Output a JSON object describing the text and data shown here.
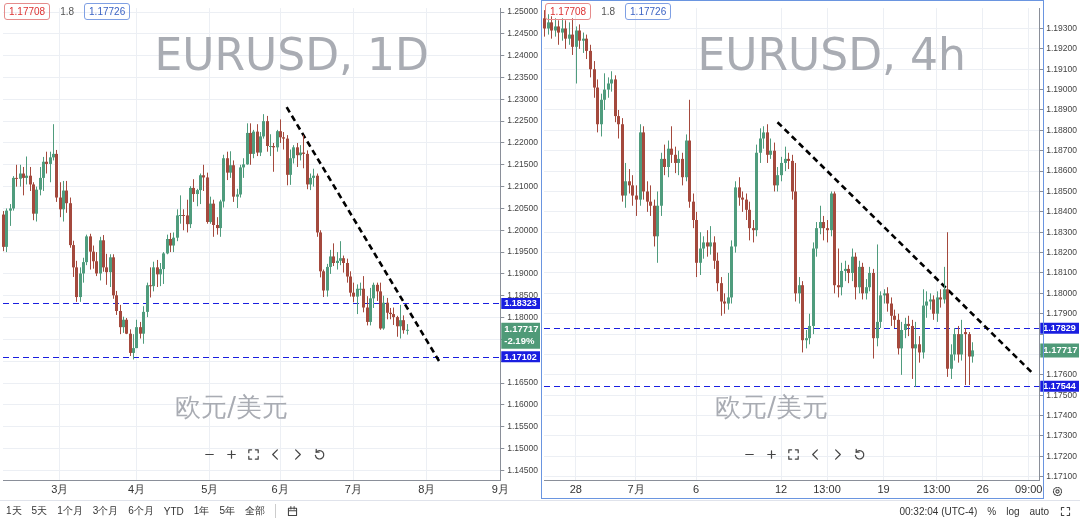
{
  "chart_data": [
    {
      "type": "candlestick",
      "title": "EURUSD, 1D",
      "subtitle": "欧元/美元",
      "categories": [
        null,
        null,
        null,
        null,
        null,
        null,
        null,
        null,
        null,
        null,
        null,
        null,
        null,
        null,
        null,
        null,
        null,
        "3月",
        null,
        null,
        null,
        null,
        null,
        null,
        null,
        null,
        null,
        null,
        null,
        null,
        null,
        null,
        null,
        null,
        null,
        null,
        null,
        null,
        null,
        null,
        "4月",
        null,
        null,
        null,
        null,
        null,
        null,
        null,
        null,
        null,
        null,
        null,
        null,
        null,
        null,
        null,
        null,
        null,
        null,
        null,
        null,
        null,
        "5月",
        null,
        null,
        null,
        null,
        null,
        null,
        null,
        null,
        null,
        null,
        null,
        null,
        null,
        null,
        null,
        null,
        null,
        null,
        null,
        null,
        "6月",
        null,
        null,
        null,
        null,
        null,
        null,
        null,
        null,
        null,
        null,
        null,
        null,
        null,
        null,
        null,
        null,
        null,
        null,
        null,
        null,
        null,
        "7月",
        null,
        null,
        null,
        null,
        null,
        null,
        null,
        null,
        null,
        null,
        null,
        null,
        null,
        null,
        null,
        null,
        null,
        null,
        null,
        null,
        null,
        "8月",
        null,
        null,
        null,
        null,
        null,
        null,
        null,
        null,
        null,
        null,
        null,
        null,
        null,
        null,
        null,
        null,
        null,
        null,
        null,
        null,
        null,
        "9月"
      ],
      "ohlc": [
        [
          1.2036,
          1.2044,
          1.1952,
          1.1962
        ],
        [
          1.1962,
          1.205,
          1.195,
          1.2045
        ],
        [
          1.2045,
          1.206,
          1.201,
          1.205
        ],
        [
          1.205,
          1.2124,
          1.2045,
          1.212
        ],
        [
          1.212,
          1.215,
          1.21,
          1.2118
        ],
        [
          1.2118,
          1.215,
          1.21,
          1.213
        ],
        [
          1.213,
          1.2145,
          1.208,
          1.212
        ],
        [
          1.212,
          1.2169,
          1.2105,
          1.2125
        ],
        [
          1.2125,
          1.2145,
          1.209,
          1.2105
        ],
        [
          1.2105,
          1.211,
          1.2023,
          1.2038
        ],
        [
          1.2038,
          1.21,
          1.202,
          1.2093
        ],
        [
          1.2093,
          1.2145,
          1.208,
          1.212
        ],
        [
          1.212,
          1.2168,
          1.209,
          1.2157
        ],
        [
          1.2157,
          1.218,
          1.213,
          1.2152
        ],
        [
          1.2152,
          1.218,
          1.211,
          1.2167
        ],
        [
          1.2167,
          1.2243,
          1.216,
          1.2175
        ],
        [
          1.2175,
          1.2184,
          1.2065,
          1.2075
        ],
        [
          1.2075,
          1.211,
          1.203,
          1.2048
        ],
        [
          1.2048,
          1.2113,
          1.202,
          1.2091
        ],
        [
          1.2091,
          1.2113,
          1.204,
          1.2062
        ],
        [
          1.2062,
          1.2075,
          1.196,
          1.1966
        ],
        [
          1.1966,
          1.1976,
          1.1893,
          1.1915
        ],
        [
          1.1915,
          1.193,
          1.1836,
          1.1847
        ],
        [
          1.1847,
          1.1915,
          1.1836,
          1.1901
        ],
        [
          1.1901,
          1.1937,
          1.188,
          1.1927
        ],
        [
          1.1927,
          1.199,
          1.192,
          1.1986
        ],
        [
          1.1986,
          1.1992,
          1.191,
          1.1951
        ],
        [
          1.1951,
          1.1965,
          1.1912,
          1.1929
        ],
        [
          1.1929,
          1.195,
          1.1895,
          1.1901
        ],
        [
          1.1901,
          1.1985,
          1.1885,
          1.1977
        ],
        [
          1.1977,
          1.1989,
          1.1905,
          1.1915
        ],
        [
          1.1915,
          1.1946,
          1.1875,
          1.1904
        ],
        [
          1.1904,
          1.1945,
          1.187,
          1.1938
        ],
        [
          1.1938,
          1.1945,
          1.1843,
          1.1851
        ],
        [
          1.1851,
          1.1861,
          1.1806,
          1.1815
        ],
        [
          1.1815,
          1.1829,
          1.1762,
          1.1778
        ],
        [
          1.1778,
          1.1802,
          1.1765,
          1.1795
        ],
        [
          1.1795,
          1.1799,
          1.1762,
          1.1763
        ],
        [
          1.1763,
          1.1773,
          1.1712,
          1.1719
        ],
        [
          1.1719,
          1.1762,
          1.1704,
          1.173
        ],
        [
          1.173,
          1.1795,
          1.173,
          1.1778
        ],
        [
          1.1778,
          1.179,
          1.1752,
          1.1763
        ],
        [
          1.1763,
          1.1826,
          1.174,
          1.1813
        ],
        [
          1.1813,
          1.188,
          1.1801,
          1.1874
        ],
        [
          1.1874,
          1.1915,
          1.1846,
          1.1872
        ],
        [
          1.1872,
          1.1928,
          1.186,
          1.1915
        ],
        [
          1.1915,
          1.1932,
          1.187,
          1.1899
        ],
        [
          1.1899,
          1.1925,
          1.1872,
          1.1911
        ],
        [
          1.1911,
          1.195,
          1.1877,
          1.1947
        ],
        [
          1.1947,
          1.199,
          1.1945,
          1.198
        ],
        [
          1.198,
          1.1994,
          1.195,
          1.1965
        ],
        [
          1.1965,
          1.1995,
          1.195,
          1.1983
        ],
        [
          1.1983,
          1.2048,
          1.1975,
          1.2034
        ],
        [
          1.2034,
          1.208,
          1.2015,
          1.2035
        ],
        [
          1.2035,
          1.2048,
          1.2,
          1.2034
        ],
        [
          1.2034,
          1.207,
          1.1995,
          1.2014
        ],
        [
          1.2014,
          1.2101,
          1.2005,
          1.2097
        ],
        [
          1.2097,
          1.2117,
          1.2065,
          1.2083
        ],
        [
          1.2083,
          1.2095,
          1.2055,
          1.2092
        ],
        [
          1.2092,
          1.213,
          1.206,
          1.2126
        ],
        [
          1.2126,
          1.215,
          1.209,
          1.2121
        ],
        [
          1.2121,
          1.2132,
          1.2015,
          1.2019
        ],
        [
          1.2019,
          1.2077,
          1.2015,
          1.2061
        ],
        [
          1.2061,
          1.207,
          1.1985,
          1.2012
        ],
        [
          1.2012,
          1.203,
          1.199,
          1.2005
        ],
        [
          1.2005,
          1.207,
          1.1985,
          1.2066
        ],
        [
          1.2066,
          1.2173,
          1.2052,
          1.2165
        ],
        [
          1.2165,
          1.218,
          1.2115,
          1.2132
        ],
        [
          1.2132,
          1.2181,
          1.212,
          1.2149
        ],
        [
          1.2149,
          1.216,
          1.2065,
          1.2077
        ],
        [
          1.2077,
          1.2095,
          1.2051,
          1.2082
        ],
        [
          1.2082,
          1.215,
          1.2075,
          1.2144
        ],
        [
          1.2144,
          1.2165,
          1.212,
          1.2151
        ],
        [
          1.2151,
          1.2245,
          1.215,
          1.2223
        ],
        [
          1.2223,
          1.2245,
          1.215,
          1.2175
        ],
        [
          1.2175,
          1.223,
          1.2165,
          1.2226
        ],
        [
          1.2226,
          1.2243,
          1.217,
          1.2178
        ],
        [
          1.2178,
          1.2225,
          1.217,
          1.2215
        ],
        [
          1.2215,
          1.2266,
          1.221,
          1.225
        ],
        [
          1.225,
          1.2262,
          1.218,
          1.2193
        ],
        [
          1.2193,
          1.222,
          1.217,
          1.2193
        ],
        [
          1.2193,
          1.22,
          1.2134,
          1.219
        ],
        [
          1.219,
          1.223,
          1.218,
          1.2227
        ],
        [
          1.2227,
          1.2254,
          1.22,
          1.2213
        ],
        [
          1.2213,
          1.2225,
          1.2185,
          1.221
        ],
        [
          1.221,
          1.2218,
          1.2103,
          1.2127
        ],
        [
          1.2127,
          1.2185,
          1.2104,
          1.2165
        ],
        [
          1.2165,
          1.2195,
          1.2153,
          1.219
        ],
        [
          1.219,
          1.22,
          1.2145,
          1.2172
        ],
        [
          1.2172,
          1.2195,
          1.216,
          1.2178
        ],
        [
          1.2178,
          1.2218,
          1.2142,
          1.2175
        ],
        [
          1.2175,
          1.2183,
          1.2094,
          1.2105
        ],
        [
          1.2105,
          1.213,
          1.2092,
          1.212
        ],
        [
          1.212,
          1.2141,
          1.21,
          1.2125
        ],
        [
          1.2125,
          1.213,
          1.1985,
          1.1995
        ],
        [
          1.1995,
          1.2,
          1.1892,
          1.1906
        ],
        [
          1.1906,
          1.191,
          1.1847,
          1.1862
        ],
        [
          1.1862,
          1.1923,
          1.1848,
          1.1916
        ],
        [
          1.1916,
          1.1955,
          1.19,
          1.194
        ],
        [
          1.194,
          1.197,
          1.1918,
          1.1925
        ],
        [
          1.1925,
          1.195,
          1.191,
          1.193
        ],
        [
          1.193,
          1.1975,
          1.192,
          1.1936
        ],
        [
          1.1936,
          1.1942,
          1.1903,
          1.1925
        ],
        [
          1.1925,
          1.1935,
          1.188,
          1.1894
        ],
        [
          1.1894,
          1.1906,
          1.1848,
          1.1857
        ],
        [
          1.1857,
          1.188,
          1.1835,
          1.1848
        ],
        [
          1.1848,
          1.1876,
          1.1808,
          1.1866
        ],
        [
          1.1866,
          1.188,
          1.185,
          1.1866
        ],
        [
          1.1866,
          1.1895,
          1.1812,
          1.1823
        ],
        [
          1.1823,
          1.1849,
          1.1782,
          1.179
        ],
        [
          1.179,
          1.1868,
          1.1782,
          1.1844
        ],
        [
          1.1844,
          1.188,
          1.1822,
          1.1875
        ],
        [
          1.1875,
          1.188,
          1.1838,
          1.186
        ],
        [
          1.186,
          1.188,
          1.1772,
          1.1775
        ],
        [
          1.1775,
          1.185,
          1.1772,
          1.1834
        ],
        [
          1.1834,
          1.1845,
          1.1796,
          1.1811
        ],
        [
          1.1811,
          1.1822,
          1.1796,
          1.1808
        ],
        [
          1.1808,
          1.1823,
          1.1783,
          1.1801
        ],
        [
          1.1801,
          1.1804,
          1.1756,
          1.178
        ],
        [
          1.178,
          1.1829,
          1.1752,
          1.1794
        ],
        [
          1.1794,
          1.1805,
          1.1763,
          1.1771
        ],
        [
          1.1771,
          1.1785,
          1.1761,
          1.1772
        ],
        null,
        null,
        null,
        null,
        null,
        null,
        null,
        null,
        null,
        null,
        null,
        null,
        null,
        null,
        null,
        null,
        null,
        null,
        null,
        null,
        null,
        null,
        null,
        null,
        null,
        null,
        null,
        null
      ],
      "series": [
        {
          "type": "line",
          "color": "#000000",
          "line_style": "dashed",
          "values": [
            null,
            null,
            null,
            null,
            null,
            null,
            null,
            null,
            null,
            null,
            null,
            null,
            null,
            null,
            null,
            null,
            null,
            null,
            null,
            null,
            null,
            null,
            null,
            null,
            null,
            null,
            null,
            null,
            null,
            null,
            null,
            null,
            null,
            null,
            null,
            null,
            null,
            null,
            null,
            null,
            null,
            null,
            null,
            null,
            null,
            null,
            null,
            null,
            null,
            null,
            null,
            null,
            null,
            null,
            null,
            null,
            null,
            null,
            null,
            null,
            null,
            null,
            null,
            null,
            null,
            null,
            null,
            null,
            null,
            null,
            null,
            null,
            null,
            null,
            null,
            null,
            null,
            null,
            null,
            null,
            null,
            null,
            null,
            null,
            null,
            1.2282,
            null,
            null,
            null,
            null,
            null,
            null,
            null,
            null,
            null,
            null,
            null,
            null,
            null,
            null,
            null,
            null,
            null,
            null,
            null,
            null,
            null,
            null,
            null,
            null,
            null,
            null,
            null,
            null,
            null,
            null,
            null,
            null,
            null,
            null,
            null,
            null,
            null,
            null,
            null,
            null,
            null,
            null,
            null,
            null,
            null,
            1.1696,
            null,
            null,
            null,
            null,
            null,
            null,
            null,
            null,
            null,
            null,
            null,
            null,
            null,
            null,
            null,
            null,
            null,
            null
          ]
        }
      ],
      "ylim": [
        1.1426,
        1.2509
      ],
      "yticks": [
        {
          "value": 1.145,
          "label": "1.14500"
        },
        {
          "value": 1.15,
          "label": "1.15000"
        },
        {
          "value": 1.155,
          "label": "1.15500"
        },
        {
          "value": 1.16,
          "label": "1.16000"
        },
        {
          "value": 1.165,
          "label": "1.16500"
        },
        {
          "value": 1.17,
          "label": null
        },
        {
          "value": 1.175,
          "label": null
        },
        {
          "value": 1.18,
          "label": "1.18000"
        },
        {
          "value": 1.185,
          "label": "1.18500"
        },
        {
          "value": 1.19,
          "label": "1.19000"
        },
        {
          "value": 1.195,
          "label": "1.19500"
        },
        {
          "value": 1.2,
          "label": "1.20000"
        },
        {
          "value": 1.205,
          "label": "1.20500"
        },
        {
          "value": 1.21,
          "label": "1.21000"
        },
        {
          "value": 1.215,
          "label": "1.21500"
        },
        {
          "value": 1.22,
          "label": "1.22000"
        },
        {
          "value": 1.225,
          "label": "1.22500"
        },
        {
          "value": 1.23,
          "label": "1.23000"
        },
        {
          "value": 1.235,
          "label": "1.23500"
        },
        {
          "value": 1.24,
          "label": "1.24000"
        },
        {
          "value": 1.245,
          "label": "1.24500"
        },
        {
          "value": 1.25,
          "label": "1.25000"
        }
      ],
      "grid": true,
      "ref_lines": [
        {
          "axis": "y",
          "value": 1.18323,
          "label": "1.18323",
          "color": "#1a1ee0",
          "line_style": "dashed"
        },
        {
          "axis": "y",
          "value": 1.17102,
          "label": "1.17102",
          "color": "#1a1ee0",
          "line_style": "dashed"
        }
      ],
      "annotations": [
        "1.17717\n-2.19%",
        "1.17708",
        "1.8",
        "1.17726",
        "1天",
        "5天",
        "1个月",
        "3个月",
        "6个月",
        "YTD",
        "1年",
        "5年",
        "全部"
      ]
    },
    {
      "type": "candlestick",
      "title": "EURUSD, 4h",
      "subtitle": "欧元/美元",
      "categories": [
        null,
        null,
        null,
        null,
        null,
        null,
        null,
        null,
        null,
        "28",
        null,
        null,
        null,
        null,
        null,
        null,
        null,
        null,
        null,
        null,
        null,
        null,
        null,
        null,
        null,
        null,
        "7月",
        null,
        null,
        null,
        null,
        null,
        null,
        null,
        null,
        null,
        null,
        null,
        null,
        null,
        null,
        null,
        null,
        "6",
        null,
        null,
        null,
        null,
        null,
        null,
        null,
        null,
        null,
        null,
        null,
        null,
        null,
        null,
        null,
        null,
        null,
        null,
        null,
        null,
        null,
        null,
        null,
        "12",
        null,
        null,
        null,
        null,
        null,
        null,
        null,
        null,
        null,
        null,
        null,
        null,
        "13:00",
        null,
        null,
        null,
        null,
        null,
        null,
        null,
        null,
        null,
        null,
        null,
        null,
        null,
        null,
        null,
        "19",
        null,
        null,
        null,
        null,
        null,
        null,
        null,
        null,
        null,
        null,
        null,
        null,
        null,
        null,
        "13:00",
        null,
        null,
        null,
        null,
        null,
        null,
        null,
        null,
        null,
        null,
        null,
        null,
        "26",
        null,
        null,
        null,
        null,
        null,
        null,
        null,
        null,
        null,
        null,
        null,
        null,
        "09:00",
        null,
        null,
        null
      ],
      "ohlc": [
        [
          1.1935,
          1.1939,
          1.1926,
          1.193
        ],
        [
          1.193,
          1.1937,
          1.1927,
          1.1933
        ],
        [
          1.1933,
          1.1936,
          1.1925,
          1.1929
        ],
        [
          1.1929,
          1.1935,
          1.1926,
          1.1931
        ],
        [
          1.1931,
          1.1934,
          1.1922,
          1.1928
        ],
        [
          1.1928,
          1.1935,
          1.1924,
          1.193
        ],
        [
          1.193,
          1.1934,
          1.192,
          1.1925
        ],
        [
          1.1925,
          1.1933,
          1.1922,
          1.1927
        ],
        [
          1.1927,
          1.1935,
          1.1917,
          1.1921
        ],
        [
          1.1921,
          1.1931,
          1.1903,
          1.1929
        ],
        [
          1.1929,
          1.1932,
          1.192,
          1.1924
        ],
        [
          1.1924,
          1.1928,
          1.1918,
          1.1925
        ],
        [
          1.1925,
          1.1927,
          1.1915,
          1.1919
        ],
        [
          1.1919,
          1.1922,
          1.1906,
          1.191
        ],
        [
          1.191,
          1.1914,
          1.1896,
          1.1901
        ],
        [
          1.1901,
          1.1905,
          1.1879,
          1.1883
        ],
        [
          1.1883,
          1.1898,
          1.1877,
          1.1895
        ],
        [
          1.1895,
          1.1908,
          1.189,
          1.19
        ],
        [
          1.19,
          1.1906,
          1.1896,
          1.1903
        ],
        [
          1.1903,
          1.1909,
          1.1899,
          1.1905
        ],
        [
          1.1905,
          1.1907,
          1.1884,
          1.1887
        ],
        [
          1.1887,
          1.189,
          1.1876,
          1.1883
        ],
        [
          1.1883,
          1.1886,
          1.1845,
          1.1848
        ],
        [
          1.1848,
          1.1864,
          1.1842,
          1.1855
        ],
        [
          1.1855,
          1.1861,
          1.1849,
          1.1853
        ],
        [
          1.1853,
          1.1858,
          1.1843,
          1.1848
        ],
        [
          1.1848,
          1.1853,
          1.1838,
          1.1846
        ],
        [
          1.1846,
          1.1883,
          1.1843,
          1.1879
        ],
        [
          1.1879,
          1.1882,
          1.1846,
          1.185
        ],
        [
          1.185,
          1.1855,
          1.184,
          1.1845
        ],
        [
          1.1845,
          1.1853,
          1.1838,
          1.1843
        ],
        [
          1.1843,
          1.1846,
          1.1823,
          1.1828
        ],
        [
          1.1828,
          1.185,
          1.1815,
          1.1843
        ],
        [
          1.1843,
          1.1869,
          1.1838,
          1.1866
        ],
        [
          1.1866,
          1.1873,
          1.1858,
          1.1862
        ],
        [
          1.1862,
          1.1875,
          1.1857,
          1.1871
        ],
        [
          1.1871,
          1.1882,
          1.1864,
          1.1868
        ],
        [
          1.1868,
          1.1872,
          1.1859,
          1.1864
        ],
        [
          1.1864,
          1.187,
          1.1858,
          1.1866
        ],
        [
          1.1866,
          1.1869,
          1.1853,
          1.1857
        ],
        [
          1.1857,
          1.1878,
          1.1855,
          1.1875
        ],
        [
          1.1875,
          1.1895,
          1.1842,
          1.1845
        ],
        [
          1.1845,
          1.1849,
          1.1832,
          1.1836
        ],
        [
          1.1836,
          1.184,
          1.1808,
          1.1815
        ],
        [
          1.1815,
          1.183,
          1.1809,
          1.1822
        ],
        [
          1.1822,
          1.1828,
          1.1817,
          1.1825
        ],
        [
          1.1825,
          1.1831,
          1.1818,
          1.1823
        ],
        [
          1.1823,
          1.1833,
          1.1819,
          1.1825
        ],
        [
          1.1825,
          1.1828,
          1.1812,
          1.1816
        ],
        [
          1.1816,
          1.182,
          1.1801,
          1.1805
        ],
        [
          1.1805,
          1.1808,
          1.1789,
          1.1796
        ],
        [
          1.1796,
          1.18,
          1.179,
          1.1795
        ],
        [
          1.1795,
          1.181,
          1.1792,
          1.1798
        ],
        [
          1.1798,
          1.1826,
          1.1795,
          1.1823
        ],
        [
          1.1823,
          1.1855,
          1.182,
          1.1852
        ],
        [
          1.1852,
          1.1857,
          1.1843,
          1.1847
        ],
        [
          1.1847,
          1.185,
          1.184,
          1.1846
        ],
        [
          1.1846,
          1.1849,
          1.1836,
          1.1841
        ],
        [
          1.1841,
          1.1845,
          1.1826,
          1.1832
        ],
        [
          1.1832,
          1.1836,
          1.1825,
          1.1831
        ],
        [
          1.1831,
          1.1873,
          1.1828,
          1.1869
        ],
        [
          1.1869,
          1.1881,
          1.1864,
          1.1876
        ],
        [
          1.1876,
          1.1882,
          1.1871,
          1.1879
        ],
        [
          1.1879,
          1.1883,
          1.1864,
          1.1868
        ],
        [
          1.1868,
          1.1876,
          1.1866,
          1.187
        ],
        [
          1.187,
          1.1874,
          1.185,
          1.1853
        ],
        [
          1.1853,
          1.1862,
          1.185,
          1.1858
        ],
        [
          1.1858,
          1.1867,
          1.1855,
          1.1864
        ],
        [
          1.1864,
          1.1872,
          1.186,
          1.1866
        ],
        [
          1.1866,
          1.1869,
          1.1861,
          1.1865
        ],
        [
          1.1865,
          1.1868,
          1.1846,
          1.185
        ],
        [
          1.185,
          1.1864,
          1.1796,
          1.18
        ],
        [
          1.18,
          1.1808,
          1.1795,
          1.1804
        ],
        [
          1.1804,
          1.1806,
          1.1771,
          1.1777
        ],
        [
          1.1777,
          1.1782,
          1.1773,
          1.1778
        ],
        [
          1.1778,
          1.179,
          1.1775,
          1.1784
        ],
        [
          1.1784,
          1.1825,
          1.178,
          1.1822
        ],
        [
          1.1822,
          1.1835,
          1.1818,
          1.1832
        ],
        [
          1.1832,
          1.1843,
          1.1829,
          1.1835
        ],
        [
          1.1835,
          1.1838,
          1.1826,
          1.1832
        ],
        [
          1.1832,
          1.1836,
          1.1825,
          1.1831
        ],
        [
          1.1831,
          1.185,
          1.1828,
          1.1849
        ],
        [
          1.1849,
          1.185,
          1.18,
          1.1804
        ],
        [
          1.1804,
          1.1822,
          1.1798,
          1.1803
        ],
        [
          1.1803,
          1.1815,
          1.1799,
          1.1811
        ],
        [
          1.1811,
          1.1816,
          1.1806,
          1.1812
        ],
        [
          1.1812,
          1.1814,
          1.1805,
          1.181
        ],
        [
          1.181,
          1.1822,
          1.1806,
          1.1818
        ],
        [
          1.1818,
          1.182,
          1.1797,
          1.1803
        ],
        [
          1.1803,
          1.1816,
          1.18,
          1.1813
        ],
        [
          1.1813,
          1.1815,
          1.1797,
          1.18
        ],
        [
          1.18,
          1.1807,
          1.1797,
          1.1803
        ],
        [
          1.1803,
          1.1813,
          1.1801,
          1.181
        ],
        [
          1.181,
          1.1812,
          1.1768,
          1.1778
        ],
        [
          1.1778,
          1.1824,
          1.1774,
          1.1786
        ],
        [
          1.1786,
          1.1801,
          1.1783,
          1.1799
        ],
        [
          1.1799,
          1.1802,
          1.1795,
          1.18
        ],
        [
          1.18,
          1.1803,
          1.1791,
          1.1795
        ],
        [
          1.1795,
          1.1798,
          1.1784,
          1.1789
        ],
        [
          1.1789,
          1.1792,
          1.1783,
          1.1787
        ],
        [
          1.1787,
          1.179,
          1.177,
          1.1773
        ],
        [
          1.1773,
          1.1786,
          1.176,
          1.1782
        ],
        [
          1.1782,
          1.1788,
          1.1778,
          1.1785
        ],
        [
          1.1785,
          1.1789,
          1.1779,
          1.1784
        ],
        [
          1.1784,
          1.1787,
          1.1758,
          1.1773
        ],
        [
          1.1773,
          1.1786,
          1.1754,
          1.1775
        ],
        [
          1.1775,
          1.1779,
          1.1766,
          1.1771
        ],
        [
          1.1771,
          1.1802,
          1.1768,
          1.1794
        ],
        [
          1.1794,
          1.1801,
          1.1788,
          1.1796
        ],
        [
          1.1796,
          1.18,
          1.1792,
          1.1797
        ],
        [
          1.1797,
          1.1799,
          1.1787,
          1.179
        ],
        [
          1.179,
          1.1801,
          1.1786,
          1.1798
        ],
        [
          1.1798,
          1.1802,
          1.1793,
          1.1797
        ],
        [
          1.1797,
          1.1813,
          1.1795,
          1.1802
        ],
        [
          1.1802,
          1.183,
          1.1759,
          1.1763
        ],
        [
          1.1763,
          1.1775,
          1.1758,
          1.177
        ],
        [
          1.177,
          1.1783,
          1.1767,
          1.178
        ],
        [
          1.178,
          1.1784,
          1.1766,
          1.177
        ],
        [
          1.177,
          1.1787,
          1.1767,
          1.178
        ],
        [
          1.1781,
          1.1783,
          1.1755,
          1.178
        ],
        [
          1.178,
          1.1781,
          1.1755,
          1.1769
        ],
        [
          1.1769,
          1.1776,
          1.1766,
          1.1772
        ],
        null,
        null,
        null,
        null,
        null,
        null,
        null,
        null,
        null,
        null,
        null,
        null,
        null,
        null,
        null,
        null,
        null,
        null,
        null
      ],
      "series": [
        {
          "type": "line",
          "color": "#000000",
          "line_style": "dashed",
          "values": [
            null,
            null,
            null,
            null,
            null,
            null,
            null,
            null,
            null,
            null,
            null,
            null,
            null,
            null,
            null,
            null,
            null,
            null,
            null,
            null,
            null,
            null,
            null,
            null,
            null,
            null,
            null,
            null,
            null,
            null,
            null,
            null,
            null,
            null,
            null,
            null,
            null,
            null,
            null,
            null,
            null,
            null,
            null,
            null,
            null,
            null,
            null,
            null,
            null,
            null,
            null,
            null,
            null,
            null,
            null,
            null,
            null,
            null,
            null,
            null,
            null,
            null,
            null,
            null,
            null,
            null,
            1.1884,
            null,
            null,
            null,
            null,
            null,
            null,
            null,
            null,
            null,
            null,
            null,
            null,
            null,
            null,
            null,
            null,
            null,
            null,
            null,
            null,
            null,
            null,
            null,
            null,
            null,
            null,
            null,
            null,
            null,
            null,
            null,
            null,
            null,
            null,
            null,
            null,
            null,
            null,
            null,
            null,
            null,
            null,
            null,
            null,
            null,
            null,
            null,
            null,
            null,
            null,
            null,
            null,
            null,
            null,
            null,
            null,
            null,
            null,
            null,
            null,
            null,
            null,
            null,
            null,
            null,
            null,
            null,
            null,
            null,
            null,
            null,
            1.1761,
            null,
            null
          ]
        }
      ],
      "ylim": [
        1.1708,
        1.194
      ],
      "yticks": [
        {
          "value": 1.171,
          "label": "1.17100"
        },
        {
          "value": 1.172,
          "label": "1.17200"
        },
        {
          "value": 1.173,
          "label": "1.17300"
        },
        {
          "value": 1.174,
          "label": "1.17400"
        },
        {
          "value": 1.175,
          "label": "1.17500"
        },
        {
          "value": 1.176,
          "label": "1.17600"
        },
        {
          "value": 1.177,
          "label": null
        },
        {
          "value": 1.178,
          "label": null
        },
        {
          "value": 1.179,
          "label": "1.17900"
        },
        {
          "value": 1.18,
          "label": "1.18000"
        },
        {
          "value": 1.181,
          "label": "1.18100"
        },
        {
          "value": 1.182,
          "label": "1.18200"
        },
        {
          "value": 1.183,
          "label": "1.18300"
        },
        {
          "value": 1.184,
          "label": "1.18400"
        },
        {
          "value": 1.185,
          "label": "1.18500"
        },
        {
          "value": 1.186,
          "label": "1.18600"
        },
        {
          "value": 1.187,
          "label": "1.18700"
        },
        {
          "value": 1.188,
          "label": "1.18800"
        },
        {
          "value": 1.189,
          "label": "1.18900"
        },
        {
          "value": 1.19,
          "label": "1.19000"
        },
        {
          "value": 1.191,
          "label": "1.19100"
        },
        {
          "value": 1.192,
          "label": "1.19200"
        },
        {
          "value": 1.193,
          "label": "1.19300"
        }
      ],
      "grid": true,
      "ref_lines": [
        {
          "axis": "y",
          "value": 1.17829,
          "label": "1.17829",
          "color": "#1a1ee0",
          "line_style": "dashed"
        },
        {
          "axis": "y",
          "value": 1.17544,
          "label": "1.17544",
          "color": "#1a1ee0",
          "line_style": "dashed"
        }
      ],
      "annotations": [
        "1.17717",
        "1.17708",
        "1.8",
        "1.17726",
        "00:32:04 (UTC-4)",
        "%",
        "log",
        "auto"
      ]
    }
  ]
}
